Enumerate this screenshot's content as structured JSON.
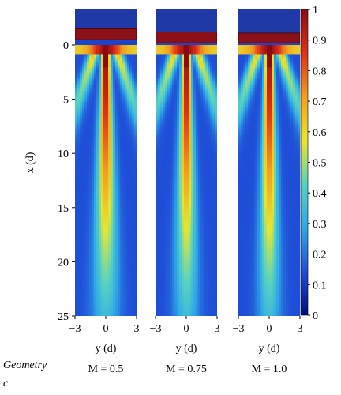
{
  "chart_data": {
    "type": "heatmap",
    "title": "",
    "ylabel": "x (d)",
    "xlabel": "y (d)",
    "ylim": [
      -3.5,
      25
    ],
    "xlim": [
      -3,
      3
    ],
    "y_ticks": [
      0,
      5,
      10,
      15,
      20,
      25
    ],
    "x_ticks": [
      -3,
      0,
      3
    ],
    "colorbar": {
      "range": [
        0,
        1
      ],
      "ticks": [
        "1",
        "0.9",
        "0.8",
        "0.7",
        "0.6",
        "0.5",
        "0.4",
        "0.3",
        "0.2",
        "0.1",
        "0"
      ],
      "colormap": "jet",
      "stops": [
        "#000c80",
        "#1f4fd8",
        "#2fa8e8",
        "#58d3c0",
        "#e8e630",
        "#f0a020",
        "#e03018",
        "#8a0a14"
      ]
    },
    "panels": [
      {
        "label": "M = 0.5",
        "source_x_range": [
          -1.5,
          -0.5
        ],
        "jet_spread": 0.34,
        "source_width": 0.42,
        "color": "#8b1018"
      },
      {
        "label": "M = 0.75",
        "source_x_range": [
          -1.2,
          -0.2
        ],
        "jet_spread": 0.3,
        "source_width": 0.36,
        "color": "#8b1018"
      },
      {
        "label": "M = 1.0",
        "source_x_range": [
          -1.1,
          -0.2
        ],
        "jet_spread": 0.27,
        "source_width": 0.3,
        "color": "#8b1018"
      }
    ],
    "background_color": "#1d3a9e",
    "top_region_color": "#1f3aa6"
  },
  "footer": {
    "geometry_label": "Geometry",
    "geometry_sub": "c"
  }
}
